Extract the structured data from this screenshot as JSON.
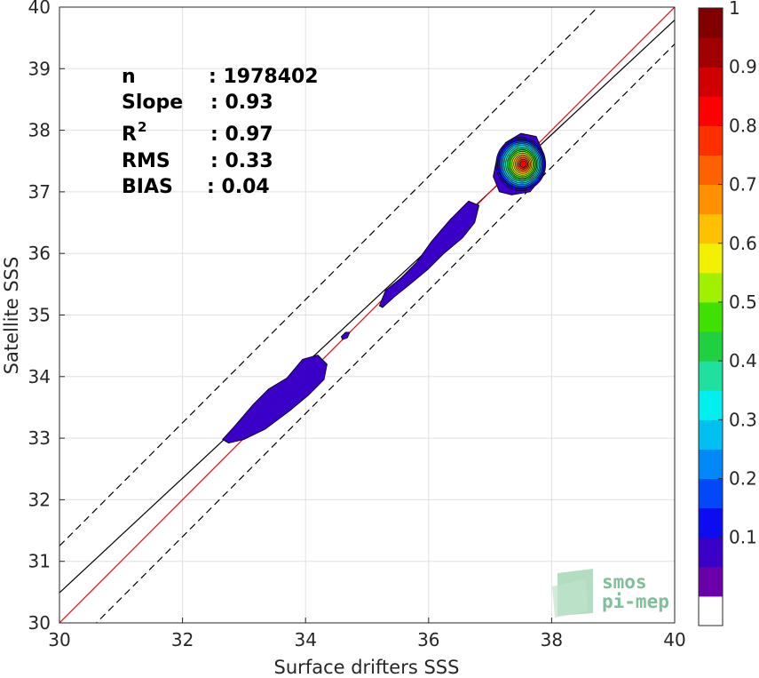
{
  "chart_data": {
    "type": "scatter",
    "xlabel": "Surface drifters SSS",
    "ylabel": "Satellite SSS",
    "xlim": [
      30,
      40
    ],
    "ylim": [
      30,
      40
    ],
    "x_ticks": [
      "30",
      "32",
      "34",
      "36",
      "38",
      "40"
    ],
    "y_ticks": [
      "30",
      "31",
      "32",
      "33",
      "34",
      "35",
      "36",
      "37",
      "38",
      "39",
      "40"
    ],
    "grid": true,
    "stats": [
      {
        "label": "n",
        "value": ": 1978402"
      },
      {
        "label": "Slope",
        "value": ": 0.93"
      },
      {
        "label": "R",
        "sup": "2",
        "value": ": 0.97"
      },
      {
        "label": "RMS",
        "value": ": 0.33"
      },
      {
        "label": "BIAS",
        "value": ": 0.04"
      }
    ],
    "lines": {
      "identity": {
        "slope": 1,
        "intercept": 0,
        "color": "#ff0000"
      },
      "fit": {
        "slope": 0.93,
        "intercept": 2.59,
        "color": "#000000"
      },
      "upper_bound": {
        "slope": 1,
        "intercept": 1.25,
        "dash": true,
        "color": "#000000"
      },
      "lower_bound": {
        "slope": 1,
        "intercept": -0.6,
        "dash": true,
        "color": "#000000"
      }
    },
    "density_blobs": [
      {
        "points": [
          [
            32.65,
            32.98
          ],
          [
            32.85,
            33.2
          ],
          [
            33.15,
            33.55
          ],
          [
            33.4,
            33.8
          ],
          [
            33.7,
            33.98
          ],
          [
            33.95,
            34.28
          ],
          [
            34.2,
            34.35
          ],
          [
            34.35,
            34.2
          ],
          [
            34.3,
            33.95
          ],
          [
            34.05,
            33.7
          ],
          [
            33.75,
            33.45
          ],
          [
            33.35,
            33.15
          ],
          [
            33.0,
            32.98
          ],
          [
            32.75,
            32.92
          ]
        ],
        "level": 0.05
      },
      {
        "points": [
          [
            34.58,
            34.65
          ],
          [
            34.65,
            34.72
          ],
          [
            34.72,
            34.72
          ],
          [
            34.68,
            34.63
          ],
          [
            34.6,
            34.6
          ]
        ],
        "level": 0.05
      },
      {
        "points": [
          [
            35.2,
            35.15
          ],
          [
            35.3,
            35.4
          ],
          [
            35.55,
            35.6
          ],
          [
            35.8,
            35.85
          ],
          [
            36.05,
            36.2
          ],
          [
            36.35,
            36.55
          ],
          [
            36.65,
            36.85
          ],
          [
            36.82,
            36.78
          ],
          [
            36.75,
            36.5
          ],
          [
            36.55,
            36.25
          ],
          [
            36.25,
            36.0
          ],
          [
            36.0,
            35.75
          ],
          [
            35.7,
            35.5
          ],
          [
            35.45,
            35.3
          ],
          [
            35.25,
            35.12
          ]
        ],
        "level": 0.05
      },
      {
        "points": [
          [
            37.05,
            37.25
          ],
          [
            37.1,
            37.5
          ],
          [
            37.25,
            37.8
          ],
          [
            37.5,
            37.95
          ],
          [
            37.75,
            37.9
          ],
          [
            37.88,
            37.6
          ],
          [
            37.85,
            37.25
          ],
          [
            37.65,
            37.0
          ],
          [
            37.35,
            36.95
          ],
          [
            37.15,
            37.0
          ]
        ],
        "level": 0.05
      }
    ],
    "peak": {
      "x": 37.5,
      "y": 37.45,
      "levels": [
        0.1,
        0.2,
        0.3,
        0.4,
        0.5,
        0.6,
        0.7,
        0.8,
        0.9,
        1.0
      ]
    },
    "colorbar": {
      "ticks": [
        "0.1",
        "0.2",
        "0.3",
        "0.4",
        "0.5",
        "0.6",
        "0.7",
        "0.8",
        "0.9",
        "1"
      ],
      "colors": [
        "#ffffff",
        "#6a00aa",
        "#3a00c8",
        "#0c0cf0",
        "#0048f8",
        "#0088f8",
        "#00c0f0",
        "#00f0f0",
        "#20e0a0",
        "#20d040",
        "#40e000",
        "#a0f000",
        "#f0f000",
        "#ffc000",
        "#ff9000",
        "#ff6000",
        "#ff3000",
        "#ff0000",
        "#d00000",
        "#a00000",
        "#800000"
      ]
    }
  },
  "logo": {
    "line1": "smos",
    "line2": "pi-mep"
  }
}
